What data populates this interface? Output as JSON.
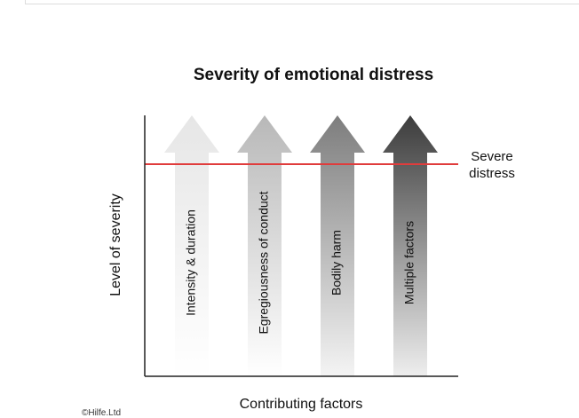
{
  "title": "Severity of emotional distress",
  "y_axis_label": "Level of severity",
  "x_axis_label": "Contributing factors",
  "threshold": {
    "label_line1": "Severe",
    "label_line2": "distress",
    "color": "#e03c3c"
  },
  "arrows": [
    {
      "label": "Intensity & duration",
      "color": "#e6e6e6"
    },
    {
      "label": "Egregiousness of conduct",
      "color": "#b8b8b8"
    },
    {
      "label": "Bodily harm",
      "color": "#7d7d7d"
    },
    {
      "label": "Multiple factors",
      "color": "#3c3c3c"
    }
  ],
  "copyright": "©Hilfe.Ltd"
}
